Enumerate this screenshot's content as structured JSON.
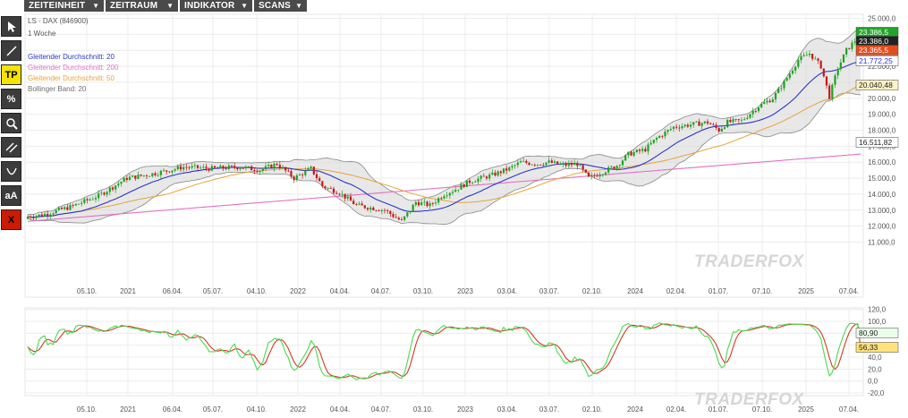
{
  "menu": [
    {
      "label": "ZEITEINHEIT",
      "arrow": "▼"
    },
    {
      "label": "ZEITRAUM",
      "arrow": "▼"
    },
    {
      "label": "INDIKATOR",
      "arrow": "▼"
    },
    {
      "label": "SCANS",
      "arrow": "▼"
    }
  ],
  "toolbar": [
    {
      "name": "cursor-arrow-icon",
      "text": ""
    },
    {
      "name": "line-tool-icon",
      "text": ""
    },
    {
      "name": "tp-button",
      "text": "TP",
      "bg": "#f5e400",
      "color": "#000000"
    },
    {
      "name": "percent-tool-icon",
      "text": "%"
    },
    {
      "name": "zoom-icon",
      "text": ""
    },
    {
      "name": "parallel-lines-icon",
      "text": ""
    },
    {
      "name": "curve-tool-icon",
      "text": ""
    },
    {
      "name": "text-size-button",
      "text": "aA"
    },
    {
      "name": "delete-button",
      "text": "X",
      "bg": "#cc1b00",
      "color": "#000000"
    }
  ],
  "legend": {
    "instrument": "LS - DAX (846900)",
    "period": "1 Woche",
    "items": [
      {
        "label": "Gleitender Durchschnitt: 20",
        "color": "#2b36c9"
      },
      {
        "label": "Gleitender Durchschnitt: 200",
        "color": "#e36fc4"
      },
      {
        "label": "Gleitender Durchschnitt: 50",
        "color": "#e8a33c"
      },
      {
        "label": "Bollinger Band: 20",
        "color": "#6e6e6e"
      }
    ]
  },
  "watermark": "TRADERFOX",
  "colors": {
    "up": "#1fa31f",
    "down": "#c81818",
    "ma20": "#2b36c9",
    "ma50": "#e8a33c",
    "ma200": "#e36fc4",
    "bb": "#888888",
    "bbfill": "#d9d9d9",
    "stochK": "#4cd94c",
    "stochD": "#d13a2a"
  },
  "chart_data": [
    {
      "type": "candlestick",
      "title": "LS - DAX (846900)",
      "subtitle": "1 Woche",
      "ylim": [
        10000,
        25000
      ],
      "yticks": [
        "25.000,0",
        "24.000,0",
        "23.000,0",
        "22.000,0",
        "21.000,0",
        "20.000,0",
        "19.000,0",
        "18.000,0",
        "17.000,0",
        "16.000,0",
        "15.000,0",
        "14.000,0",
        "13.000,0",
        "12.000,0",
        "11.000,0"
      ],
      "xticks": [
        "05.10.",
        "2021",
        "06.04.",
        "05.07.",
        "04.10.",
        "2022",
        "04.04.",
        "04.07.",
        "03.10.",
        "2023",
        "03.04.",
        "03.07.",
        "02.10.",
        "2024",
        "02.04.",
        "01.07.",
        "07.10.",
        "2025",
        "07.04."
      ],
      "anchors": [
        [
          0,
          12600
        ],
        [
          5,
          12700
        ],
        [
          15,
          13200
        ],
        [
          25,
          13900
        ],
        [
          35,
          15000
        ],
        [
          45,
          15300
        ],
        [
          55,
          15700
        ],
        [
          65,
          15600
        ],
        [
          75,
          15700
        ],
        [
          82,
          15500
        ],
        [
          88,
          15900
        ],
        [
          94,
          15000
        ],
        [
          100,
          15600
        ],
        [
          104,
          14500
        ],
        [
          110,
          14100
        ],
        [
          116,
          13300
        ],
        [
          126,
          13000
        ],
        [
          132,
          12300
        ],
        [
          137,
          13500
        ],
        [
          142,
          13300
        ],
        [
          147,
          14000
        ],
        [
          151,
          14300
        ],
        [
          156,
          14800
        ],
        [
          160,
          15000
        ],
        [
          164,
          15200
        ],
        [
          170,
          15600
        ],
        [
          174,
          16000
        ],
        [
          180,
          15900
        ],
        [
          184,
          16000
        ],
        [
          189,
          15800
        ],
        [
          194,
          15900
        ],
        [
          198,
          15000
        ],
        [
          203,
          15400
        ],
        [
          208,
          15800
        ],
        [
          212,
          16500
        ],
        [
          218,
          16800
        ],
        [
          222,
          17500
        ],
        [
          228,
          18200
        ],
        [
          232,
          18300
        ],
        [
          240,
          18500
        ],
        [
          244,
          18000
        ],
        [
          247,
          18500
        ],
        [
          252,
          18600
        ],
        [
          258,
          19500
        ],
        [
          263,
          20000
        ],
        [
          267,
          21000
        ],
        [
          272,
          22400
        ],
        [
          276,
          22800
        ],
        [
          280,
          22000
        ],
        [
          283,
          20100
        ],
        [
          286,
          21900
        ],
        [
          289,
          23000
        ],
        [
          292,
          23600
        ],
        [
          294,
          23386
        ]
      ],
      "last_values": {
        "close": "23.386,5",
        "ma20": "21.772,25",
        "ma50": "20.040,48",
        "ma200": "16.511,82",
        "bb_upper": "23.386,0",
        "bb_mid": "23.365,5"
      }
    },
    {
      "type": "line",
      "title": "Stochastic",
      "ylim": [
        -20,
        120
      ],
      "yticks": [
        "120,0",
        "100,0",
        "80,0",
        "60,0",
        "40,0",
        "20,0",
        "0,0",
        "-20,0"
      ],
      "xticks": [
        "05.10.",
        "2021",
        "06.04.",
        "05.07.",
        "04.10.",
        "2022",
        "04.04.",
        "04.07.",
        "03.10.",
        "2023",
        "03.04.",
        "03.07.",
        "02.10.",
        "2024",
        "02.04.",
        "01.07.",
        "07.10.",
        "2025",
        "07.04."
      ],
      "last_values": {
        "k": "80,90",
        "d": "56,33"
      }
    }
  ]
}
